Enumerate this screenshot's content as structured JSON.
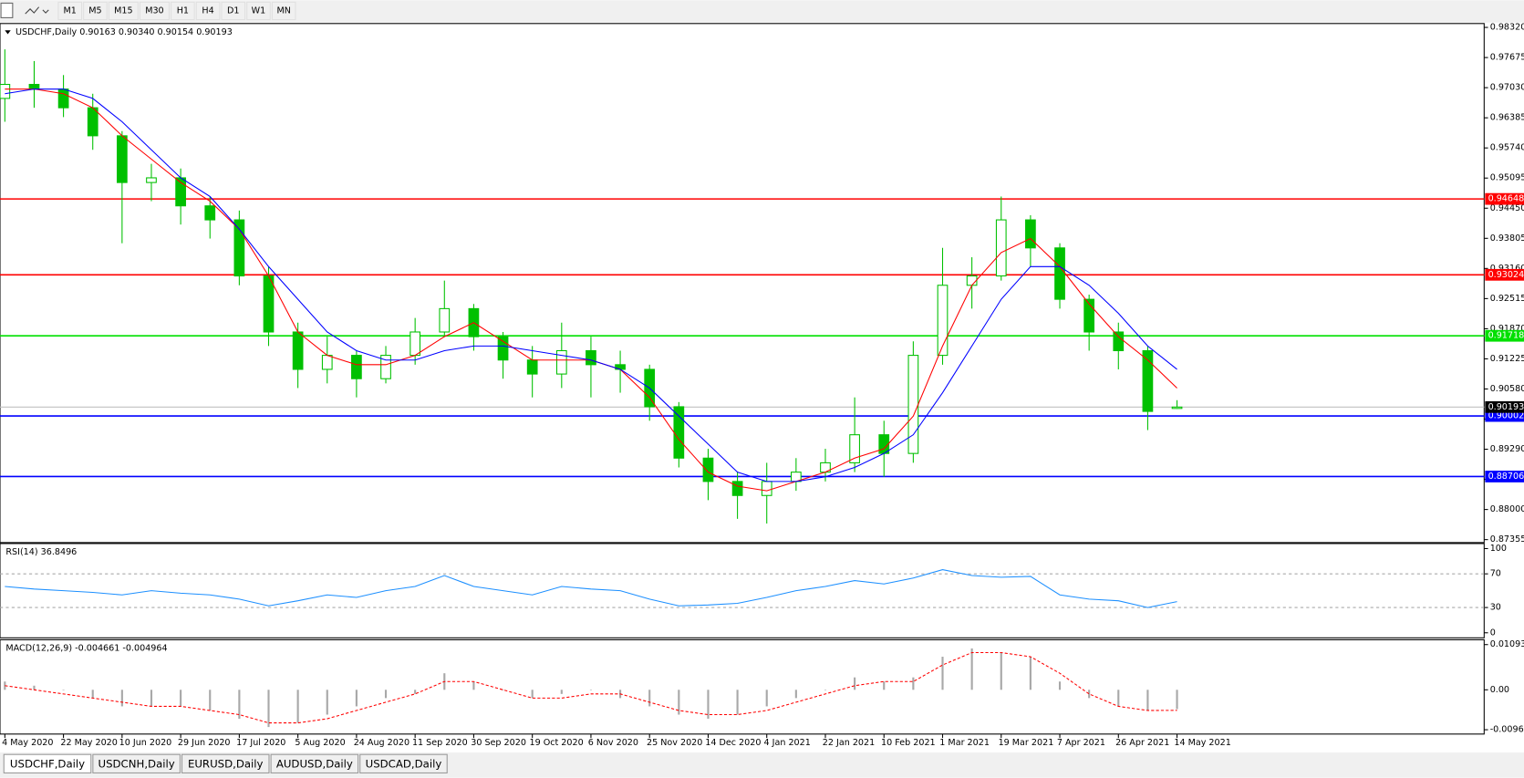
{
  "toolbar": [
    "M1",
    "M5",
    "M15",
    "M30",
    "H1",
    "H4",
    "D1",
    "W1",
    "MN"
  ],
  "tabs": [
    "USDCHF,Daily",
    "USDCNH,Daily",
    "EURUSD,Daily",
    "AUDUSD,Daily",
    "USDCAD,Daily"
  ],
  "chart_data": [
    {
      "type": "candlestick",
      "title": "USDCHF,Daily  0.90163 0.90340 0.90154 0.90193",
      "categories": [
        "4 May 2020",
        null,
        "22 May 2020",
        null,
        "10 Jun 2020",
        null,
        "29 Jun 2020",
        null,
        "17 Jul 2020",
        null,
        "5 Aug 2020",
        null,
        "24 Aug 2020",
        null,
        "11 Sep 2020",
        null,
        "30 Sep 2020",
        null,
        "19 Oct 2020",
        null,
        "6 Nov 2020",
        null,
        "25 Nov 2020",
        null,
        "14 Dec 2020",
        null,
        "4 Jan 2021",
        null,
        "22 Jan 2021",
        null,
        "10 Feb 2021",
        null,
        "1 Mar 2021",
        null,
        "19 Mar 2021",
        null,
        "7 Apr 2021",
        null,
        "26 Apr 2021",
        null,
        "14 May 2021"
      ],
      "open": [
        0.968,
        0.971,
        0.97,
        0.966,
        0.96,
        0.95,
        0.951,
        0.945,
        0.942,
        0.93,
        0.918,
        0.91,
        0.913,
        0.908,
        0.913,
        0.918,
        0.923,
        0.917,
        0.912,
        0.909,
        0.914,
        0.911,
        0.91,
        0.902,
        0.891,
        0.886,
        0.883,
        0.886,
        0.888,
        0.89,
        0.896,
        0.892,
        0.913,
        0.928,
        0.93,
        0.942,
        0.936,
        0.925,
        0.918,
        0.914,
        0.90163
      ],
      "high": [
        0.9785,
        0.976,
        0.973,
        0.969,
        0.961,
        0.954,
        0.953,
        0.947,
        0.944,
        0.932,
        0.92,
        0.917,
        0.914,
        0.915,
        0.921,
        0.929,
        0.924,
        0.918,
        0.915,
        0.92,
        0.917,
        0.914,
        0.911,
        0.903,
        0.893,
        0.888,
        0.89,
        0.891,
        0.893,
        0.904,
        0.899,
        0.916,
        0.936,
        0.934,
        0.947,
        0.943,
        0.937,
        0.926,
        0.92,
        0.915,
        0.9034
      ],
      "low": [
        0.963,
        0.966,
        0.964,
        0.957,
        0.937,
        0.946,
        0.941,
        0.938,
        0.928,
        0.915,
        0.906,
        0.907,
        0.904,
        0.907,
        0.911,
        0.917,
        0.914,
        0.908,
        0.904,
        0.906,
        0.904,
        0.905,
        0.899,
        0.889,
        0.882,
        0.878,
        0.877,
        0.884,
        0.886,
        0.888,
        0.887,
        0.89,
        0.911,
        0.923,
        0.929,
        0.932,
        0.923,
        0.914,
        0.91,
        0.897,
        0.90154
      ],
      "close": [
        0.971,
        0.97,
        0.966,
        0.96,
        0.95,
        0.951,
        0.945,
        0.942,
        0.93,
        0.918,
        0.91,
        0.913,
        0.908,
        0.913,
        0.918,
        0.923,
        0.917,
        0.912,
        0.909,
        0.914,
        0.911,
        0.91,
        0.902,
        0.891,
        0.886,
        0.883,
        0.886,
        0.888,
        0.89,
        0.896,
        0.892,
        0.913,
        0.928,
        0.93,
        0.942,
        0.936,
        0.925,
        0.918,
        0.914,
        0.901,
        0.90193
      ],
      "color": "#00c000",
      "series": [
        {
          "color": "#ff0000",
          "values": [
            0.97,
            0.97,
            0.969,
            0.966,
            0.96,
            0.955,
            0.95,
            0.946,
            0.94,
            0.93,
            0.918,
            0.913,
            0.911,
            0.911,
            0.913,
            0.917,
            0.92,
            0.916,
            0.912,
            0.912,
            0.912,
            0.91,
            0.904,
            0.895,
            0.888,
            0.885,
            0.884,
            0.886,
            0.888,
            0.891,
            0.893,
            0.9,
            0.915,
            0.928,
            0.935,
            0.938,
            0.932,
            0.924,
            0.917,
            0.912,
            0.906
          ]
        },
        {
          "color": "#0000ff",
          "values": [
            0.969,
            0.97,
            0.97,
            0.968,
            0.963,
            0.957,
            0.951,
            0.947,
            0.94,
            0.932,
            0.925,
            0.918,
            0.914,
            0.912,
            0.912,
            0.914,
            0.915,
            0.915,
            0.914,
            0.913,
            0.912,
            0.91,
            0.906,
            0.9,
            0.894,
            0.888,
            0.886,
            0.886,
            0.887,
            0.889,
            0.892,
            0.896,
            0.905,
            0.915,
            0.925,
            0.932,
            0.932,
            0.928,
            0.922,
            0.915,
            0.91
          ]
        }
      ],
      "ylim": [
        0.87292,
        0.98403
      ],
      "yticks": [
        {
          "value": 0.9832,
          "label": "0.98320"
        },
        0.97675,
        {
          "value": 0.9703,
          "label": "0.97030"
        },
        0.96385,
        {
          "value": 0.9574,
          "label": "0.95740"
        },
        0.95095,
        {
          "value": 0.9445,
          "label": "0.94450"
        },
        0.93805,
        {
          "value": 0.9316,
          "label": "0.93160"
        },
        0.92515,
        {
          "value": 0.9187,
          "label": "0.91870"
        },
        0.91225,
        {
          "value": 0.9058,
          "label": "0.90580"
        },
        0.89935,
        {
          "value": 0.8929,
          "label": "0.89290"
        },
        0.88645,
        {
          "value": 0.88,
          "label": "0.88000"
        },
        0.87355
      ],
      "hlines": [
        {
          "value": 0.94648,
          "color": "#ff0000"
        },
        {
          "value": 0.93024,
          "color": "#ff0000"
        },
        {
          "value": 0.91718,
          "color": "#00e000"
        },
        {
          "value": 0.90002,
          "color": "#0000ff"
        },
        {
          "value": 0.88706,
          "color": "#0000ff"
        }
      ],
      "last_price": {
        "value": 0.90193,
        "color": "#c0c0c0"
      }
    },
    {
      "type": "line",
      "title": "RSI(14) 36.8496",
      "series": [
        {
          "color": "#1e90ff",
          "values": [
            55,
            52,
            50,
            48,
            45,
            50,
            47,
            45,
            40,
            32,
            38,
            45,
            42,
            50,
            55,
            68,
            55,
            50,
            45,
            55,
            52,
            50,
            40,
            32,
            33,
            35,
            42,
            50,
            55,
            62,
            58,
            65,
            75,
            68,
            66,
            67,
            45,
            40,
            38,
            30,
            37
          ]
        }
      ],
      "ylim": [
        -6,
        106
      ],
      "yticks": [
        100,
        70,
        30,
        0
      ],
      "levels": [
        70,
        30
      ]
    },
    {
      "type": "macd",
      "title": "MACD(12,26,9) -0.004661 -0.004964",
      "histogram": {
        "color": "#a8a8a8",
        "values": [
          0.002,
          0.001,
          0,
          -0.002,
          -0.004,
          -0.004,
          -0.004,
          -0.005,
          -0.007,
          -0.009,
          -0.008,
          -0.006,
          -0.004,
          -0.002,
          -0.001,
          0.004,
          0.002,
          0,
          -0.002,
          -0.001,
          0,
          -0.002,
          -0.004,
          -0.006,
          -0.007,
          -0.006,
          -0.004,
          -0.002,
          0,
          0.003,
          0.002,
          0.003,
          0.008,
          0.01,
          0.009,
          0.008,
          0.002,
          -0.002,
          -0.004,
          -0.005,
          -0.004661
        ]
      },
      "signal": {
        "color": "#ff0000",
        "values": [
          0.001,
          0,
          -0.001,
          -0.002,
          -0.003,
          -0.004,
          -0.004,
          -0.005,
          -0.006,
          -0.008,
          -0.008,
          -0.007,
          -0.005,
          -0.003,
          -0.001,
          0.002,
          0.002,
          0,
          -0.002,
          -0.002,
          -0.001,
          -0.001,
          -0.003,
          -0.005,
          -0.006,
          -0.006,
          -0.005,
          -0.003,
          -0.001,
          0.001,
          0.002,
          0.002,
          0.006,
          0.009,
          0.009,
          0.008,
          0.004,
          -0.001,
          -0.004,
          -0.005,
          -0.004964
        ]
      },
      "ylim": [
        -0.0107,
        0.0121
      ],
      "yticks": [
        0.010933,
        {
          "value": 0,
          "label": "0.00"
        },
        -0.009653
      ]
    }
  ]
}
